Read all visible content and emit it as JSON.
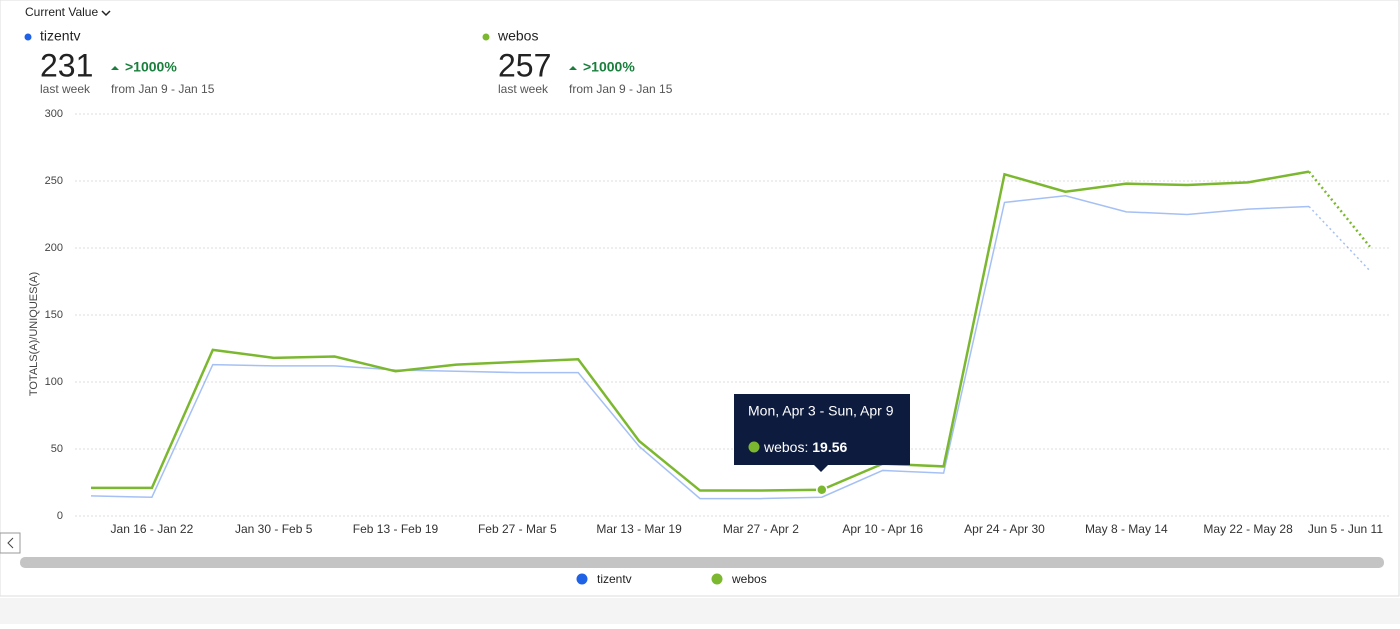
{
  "header": {
    "dropdown": "Current Value"
  },
  "summary": [
    {
      "value": 231,
      "change": ">1000%",
      "period": "last week",
      "range": "from Jan 9 - Jan 15"
    },
    {
      "value": 257,
      "change": ">1000%",
      "period": "last week",
      "range": "from Jan 9 - Jan 15"
    }
  ],
  "tooltip": {
    "title": "Mon, Apr 3 - Sun, Apr 9",
    "series": 1,
    "index": 12
  },
  "chart_data": {
    "type": "line",
    "y_label": "TOTALS(A)/UNIQUES(A)",
    "categories": [
      null,
      "Jan 16 - Jan 22",
      null,
      "Jan 30 - Feb 5",
      null,
      "Feb 13 - Feb 19",
      null,
      "Feb 27 - Mar 5",
      null,
      "Mar 13 - Mar 19",
      null,
      "Mar 27 - Apr 2",
      null,
      "Apr 10 - Apr 16",
      null,
      "Apr 24 - Apr 30",
      null,
      "May 8 - May 14",
      null,
      "May 22 - May 28",
      null,
      "Jun 5 - Jun 11"
    ],
    "series": [
      {
        "name": "tizentv",
        "color": "#1f62e6",
        "values": [
          15,
          14,
          113,
          112,
          112,
          109,
          108,
          107,
          107,
          52,
          13,
          13,
          14,
          34,
          32,
          234,
          239,
          227,
          225,
          229,
          231,
          183
        ]
      },
      {
        "name": "webos",
        "color": "#7cb82f",
        "values": [
          21,
          21,
          124,
          118,
          119,
          108,
          113,
          115,
          117,
          56,
          19,
          19,
          19.56,
          39,
          37,
          255,
          242,
          248,
          247,
          249,
          257,
          201
        ]
      }
    ],
    "ylim": [
      0,
      300
    ],
    "yticks": [
      0,
      50,
      100,
      150,
      200,
      250,
      300
    ],
    "grid": true
  }
}
